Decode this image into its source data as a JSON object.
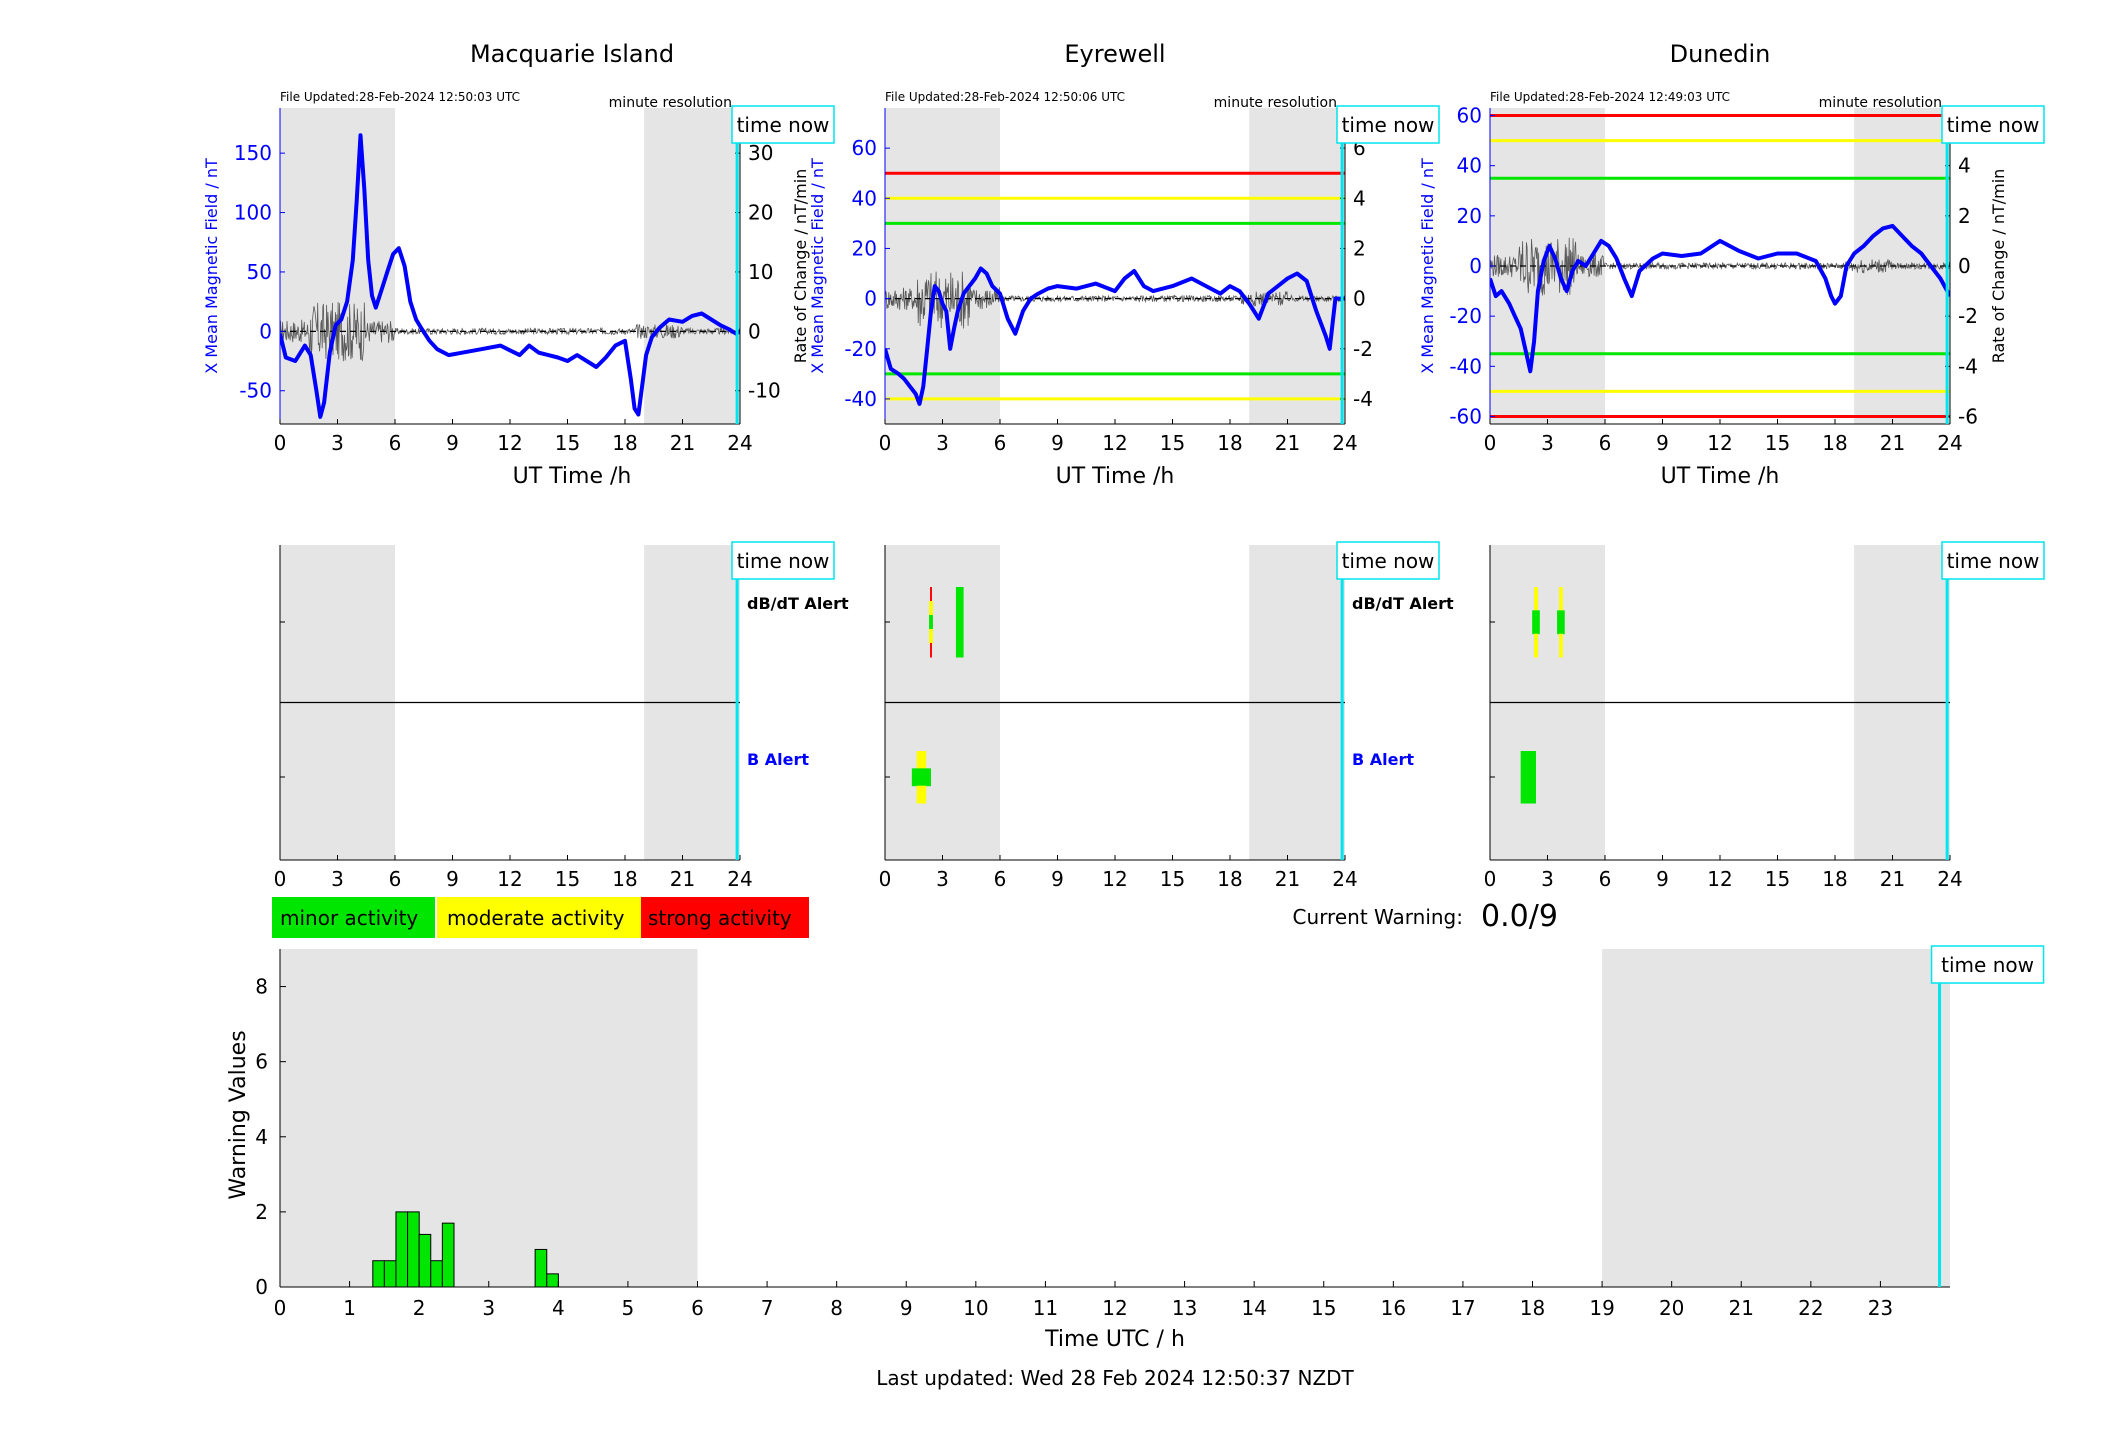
{
  "colors": {
    "shade": "#e5e5e5",
    "field": "#0000ff",
    "rate": "#595959",
    "timeNow": "#00e5ee",
    "minor": "#00e600",
    "moderate": "#ffff00",
    "strong": "#ff0000",
    "zeroLine": "#000000"
  },
  "stations": [
    {
      "name": "Macquarie Island",
      "file_updated": "File Updated:28-Feb-2024 12:50:03 UTC",
      "resolution": "minute resolution",
      "time_now_label": "time now",
      "xlabel": "UT Time /h",
      "ylabel_left": "X Mean Magnetic Field / nT",
      "ylabel_right": "",
      "alert_dbdt": "dB/dT Alert",
      "alert_b": "B Alert"
    },
    {
      "name": "Eyrewell",
      "file_updated": "File Updated:28-Feb-2024 12:50:06 UTC",
      "resolution": "minute resolution",
      "time_now_label": "time now",
      "xlabel": "UT Time /h",
      "ylabel_left": "X Mean Magnetic Field / nT",
      "ylabel_right": "Rate of Change / nT/min",
      "alert_dbdt": "dB/dT Alert",
      "alert_b": "B Alert"
    },
    {
      "name": "Dunedin",
      "file_updated": "File Updated:28-Feb-2024 12:49:03 UTC",
      "resolution": "minute resolution",
      "time_now_label": "time now",
      "xlabel": "UT Time /h",
      "ylabel_left": "X Mean Magnetic Field / nT",
      "ylabel_right": "Rate of Change / nT/min",
      "alert_dbdt": "",
      "alert_b": ""
    }
  ],
  "bottom_panel": {
    "legend": [
      "minor activity",
      "moderate activity",
      "strong activity"
    ],
    "current_warning_label": "Current Warning:",
    "current_warning_value": "0.0/9",
    "time_now_label": "time now",
    "xlabel": "Time UTC / h",
    "ylabel": "Warning Values",
    "last_updated": "Last updated: Wed 28 Feb 2024 12:50:37 NZDT"
  },
  "chart_data": [
    {
      "type": "line",
      "station": "Macquarie Island",
      "xlim": [
        0,
        24
      ],
      "xticks": [
        0,
        3,
        6,
        9,
        12,
        15,
        18,
        21,
        24
      ],
      "ylim_left": [
        -78,
        188
      ],
      "yticks_left": [
        -50,
        0,
        50,
        100,
        150
      ],
      "ylim_right": [
        -15.6,
        37.6
      ],
      "yticks_right": [
        -10,
        0,
        10,
        20,
        30
      ],
      "shaded_hours": [
        [
          0,
          6
        ],
        [
          19,
          24
        ]
      ],
      "time_now_hour": 23.85,
      "threshold_lines": [],
      "field_series": {
        "name": "X Mean Magnetic Field",
        "x": [
          0,
          0.3,
          0.8,
          1.3,
          1.6,
          1.9,
          2.1,
          2.3,
          2.6,
          2.9,
          3.2,
          3.5,
          3.8,
          4.0,
          4.2,
          4.4,
          4.6,
          4.8,
          5.0,
          5.3,
          5.6,
          5.9,
          6.2,
          6.5,
          6.8,
          7.1,
          7.4,
          7.8,
          8.2,
          8.8,
          9.5,
          10.5,
          11.5,
          12.5,
          13.0,
          13.5,
          14.0,
          14.5,
          15.0,
          15.5,
          16.0,
          16.5,
          17.0,
          17.5,
          18.0,
          18.3,
          18.5,
          18.7,
          18.9,
          19.1,
          19.4,
          19.8,
          20.3,
          21.0,
          21.5,
          22.0,
          22.5,
          23.0,
          23.4,
          23.8,
          24.0
        ],
        "y": [
          -2,
          -22,
          -25,
          -12,
          -20,
          -50,
          -72,
          -60,
          -18,
          5,
          10,
          25,
          60,
          110,
          165,
          120,
          60,
          30,
          20,
          35,
          50,
          65,
          70,
          55,
          25,
          10,
          2,
          -8,
          -15,
          -20,
          -18,
          -15,
          -12,
          -20,
          -12,
          -18,
          -20,
          -22,
          -25,
          -20,
          -25,
          -30,
          -22,
          -12,
          -8,
          -40,
          -65,
          -70,
          -45,
          -20,
          -5,
          3,
          10,
          8,
          13,
          15,
          10,
          5,
          2,
          -2,
          0
        ]
      },
      "alerts": {
        "dbdt": [],
        "b": []
      }
    },
    {
      "type": "line",
      "station": "Eyrewell",
      "xlim": [
        0,
        24
      ],
      "xticks": [
        0,
        3,
        6,
        9,
        12,
        15,
        18,
        21,
        24
      ],
      "ylim_left": [
        -50,
        76
      ],
      "yticks_left": [
        -40,
        -20,
        0,
        20,
        40,
        60
      ],
      "ylim_right": [
        -5,
        7.6
      ],
      "yticks_right": [
        -4,
        -2,
        0,
        2,
        4,
        6
      ],
      "shaded_hours": [
        [
          0,
          6
        ],
        [
          19,
          24
        ]
      ],
      "time_now_hour": 23.85,
      "threshold_lines": [
        {
          "value": 50,
          "level": "strong"
        },
        {
          "value": 40,
          "level": "moderate"
        },
        {
          "value": 30,
          "level": "minor"
        },
        {
          "value": -30,
          "level": "minor"
        },
        {
          "value": -40,
          "level": "moderate"
        }
      ],
      "field_series": {
        "name": "X Mean Magnetic Field",
        "x": [
          0,
          0.3,
          0.7,
          1.0,
          1.3,
          1.6,
          1.8,
          2.0,
          2.2,
          2.4,
          2.6,
          2.8,
          3.0,
          3.2,
          3.4,
          3.6,
          3.8,
          4.1,
          4.4,
          4.7,
          5.0,
          5.3,
          5.6,
          6.0,
          6.4,
          6.8,
          7.2,
          7.6,
          8.0,
          8.5,
          9.0,
          10.0,
          11.0,
          12.0,
          12.5,
          13.0,
          13.5,
          14.0,
          15.0,
          16.0,
          17.0,
          17.5,
          18.0,
          18.5,
          19.0,
          19.5,
          20.0,
          20.5,
          21.0,
          21.5,
          22.0,
          22.5,
          23.0,
          23.2,
          23.5,
          24.0
        ],
        "y": [
          -20,
          -28,
          -30,
          -32,
          -35,
          -38,
          -42,
          -35,
          -20,
          -5,
          5,
          3,
          -2,
          -5,
          -20,
          -12,
          -5,
          2,
          5,
          8,
          12,
          10,
          5,
          2,
          -8,
          -14,
          -5,
          0,
          2,
          4,
          5,
          4,
          6,
          3,
          8,
          11,
          5,
          3,
          5,
          8,
          4,
          2,
          5,
          3,
          -2,
          -8,
          2,
          5,
          8,
          10,
          7,
          -5,
          -15,
          -20,
          0,
          0
        ]
      },
      "alerts": {
        "dbdt": [
          {
            "x0": 2.3,
            "x1": 2.5,
            "levels": [
              "strong",
              "moderate",
              "minor",
              "moderate",
              "strong"
            ]
          },
          {
            "x0": 3.7,
            "x1": 4.1,
            "levels": [
              "minor"
            ]
          }
        ],
        "b": [
          {
            "x0": 1.4,
            "x1": 2.4,
            "levels": [
              "moderate",
              "minor",
              "moderate"
            ]
          }
        ]
      }
    },
    {
      "type": "line",
      "station": "Dunedin",
      "xlim": [
        0,
        24
      ],
      "xticks": [
        0,
        3,
        6,
        9,
        12,
        15,
        18,
        21,
        24
      ],
      "ylim_left": [
        -63,
        63
      ],
      "yticks_left": [
        -60,
        -40,
        -20,
        0,
        20,
        40,
        60
      ],
      "ylim_right": [
        -6.3,
        6.3
      ],
      "yticks_right": [
        -6,
        -4,
        -2,
        0,
        2,
        4,
        6
      ],
      "shaded_hours": [
        [
          0,
          6
        ],
        [
          19,
          24
        ]
      ],
      "time_now_hour": 23.85,
      "threshold_lines": [
        {
          "value": 60,
          "level": "strong"
        },
        {
          "value": 50,
          "level": "moderate"
        },
        {
          "value": 35,
          "level": "minor"
        },
        {
          "value": -35,
          "level": "minor"
        },
        {
          "value": -50,
          "level": "moderate"
        },
        {
          "value": -60,
          "level": "strong"
        }
      ],
      "field_series": {
        "name": "X Mean Magnetic Field",
        "x": [
          0,
          0.3,
          0.6,
          1.0,
          1.3,
          1.6,
          1.9,
          2.1,
          2.3,
          2.5,
          2.8,
          3.1,
          3.4,
          3.7,
          4.0,
          4.3,
          4.6,
          5.0,
          5.4,
          5.8,
          6.2,
          6.6,
          7.0,
          7.4,
          7.8,
          8.5,
          9.0,
          10.0,
          11.0,
          12.0,
          13.0,
          14.0,
          15.0,
          16.0,
          17.0,
          17.5,
          17.8,
          18.0,
          18.3,
          18.6,
          19.0,
          19.5,
          20.0,
          20.5,
          21.0,
          21.5,
          22.0,
          22.5,
          23.0,
          23.5,
          24.0
        ],
        "y": [
          -5,
          -12,
          -10,
          -15,
          -20,
          -25,
          -35,
          -42,
          -30,
          -10,
          2,
          8,
          3,
          -5,
          -10,
          -2,
          2,
          0,
          5,
          10,
          8,
          3,
          -5,
          -12,
          -2,
          3,
          5,
          4,
          5,
          10,
          6,
          3,
          5,
          5,
          2,
          -5,
          -12,
          -15,
          -12,
          0,
          5,
          8,
          12,
          15,
          16,
          12,
          8,
          5,
          0,
          -5,
          -12
        ]
      },
      "alerts": {
        "dbdt": [
          {
            "x0": 2.2,
            "x1": 2.6,
            "levels": [
              "moderate",
              "minor",
              "moderate"
            ]
          },
          {
            "x0": 3.5,
            "x1": 3.9,
            "levels": [
              "moderate",
              "minor",
              "moderate"
            ]
          }
        ],
        "b": [
          {
            "x0": 1.6,
            "x1": 2.4,
            "levels": [
              "minor"
            ]
          }
        ]
      }
    },
    {
      "type": "bar",
      "title": "",
      "xlabel": "Time UTC / h",
      "ylabel": "Warning Values",
      "xlim": [
        0,
        24
      ],
      "ylim": [
        0,
        9
      ],
      "xticks": [
        0,
        1,
        2,
        3,
        4,
        5,
        6,
        7,
        8,
        9,
        10,
        11,
        12,
        13,
        14,
        15,
        16,
        17,
        18,
        19,
        20,
        21,
        22,
        23
      ],
      "yticks": [
        0,
        2,
        4,
        6,
        8
      ],
      "shaded_hours": [
        [
          0,
          6
        ],
        [
          19,
          24
        ]
      ],
      "time_now_hour": 23.85,
      "bar_width_h": 0.167,
      "x": [
        1.417,
        1.583,
        1.75,
        1.917,
        2.083,
        2.25,
        2.417,
        3.75,
        3.917
      ],
      "values": [
        0.7,
        0.7,
        2.0,
        2.0,
        1.4,
        0.7,
        1.7,
        1.0,
        0.35
      ]
    }
  ]
}
